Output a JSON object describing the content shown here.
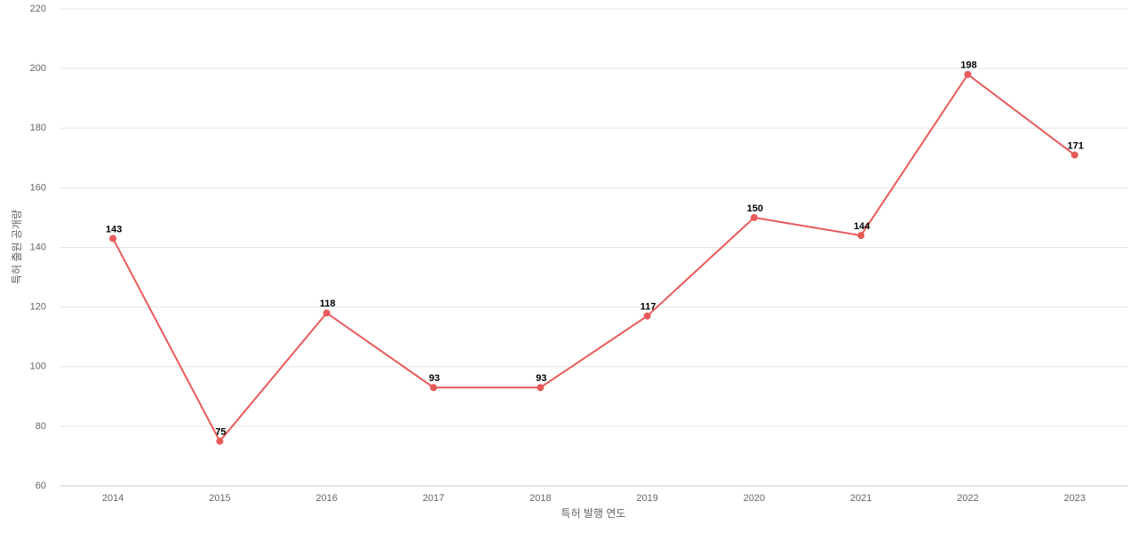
{
  "chart_data": {
    "type": "line",
    "x_label": "특허 발행 연도",
    "y_label": "특허 출원 공개량",
    "categories": [
      "2014",
      "2015",
      "2016",
      "2017",
      "2018",
      "2019",
      "2020",
      "2021",
      "2022",
      "2023"
    ],
    "series": [
      {
        "name": "특허 출원 공개량",
        "color": "#e85a5a",
        "values": [
          143,
          75,
          118,
          93,
          93,
          117,
          150,
          144,
          198,
          171
        ]
      }
    ],
    "ylim": [
      60,
      220
    ],
    "yticks": [
      60,
      80,
      100,
      120,
      140,
      160,
      180,
      200,
      220
    ],
    "grid": true,
    "data_labels": true
  }
}
